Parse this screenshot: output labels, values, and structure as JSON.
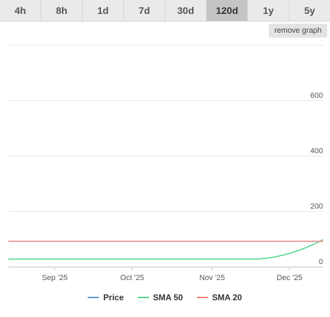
{
  "ranges": [
    "4h",
    "8h",
    "1d",
    "7d",
    "30d",
    "120d",
    "1y",
    "5y"
  ],
  "active_range": "120d",
  "remove_label": "remove graph",
  "colors": {
    "price": "#5b9bd5",
    "sma50": "#4ed38b",
    "sma20": "#f08080",
    "grid": "#e6e6e6"
  },
  "legend": [
    {
      "label": "Price",
      "color": "#5b9bd5"
    },
    {
      "label": "SMA 50",
      "color": "#4ed38b"
    },
    {
      "label": "SMA 20",
      "color": "#f08080"
    }
  ],
  "chart_data": {
    "type": "line",
    "title": "",
    "xlabel": "",
    "ylabel": "",
    "ylim": [
      0,
      800
    ],
    "yticks": [
      0,
      200,
      400,
      600
    ],
    "xticks": [
      {
        "label": "Sep '25",
        "date": "2025-09-01"
      },
      {
        "label": "Oct '25",
        "date": "2025-10-01"
      },
      {
        "label": "Nov '25",
        "date": "2025-11-01"
      },
      {
        "label": "Dec '25",
        "date": "2025-12-01"
      }
    ],
    "x_start": "2025-08-14",
    "x_end": "2025-12-14",
    "grid": true,
    "legend_position": "bottom",
    "series": [
      {
        "name": "SMA 50",
        "color": "#4ed38b",
        "points": [
          [
            "2025-08-14",
            28
          ],
          [
            "2025-09-15",
            28
          ],
          [
            "2025-10-15",
            28
          ],
          [
            "2025-11-15",
            28
          ],
          [
            "2025-11-19",
            28
          ],
          [
            "2025-11-25",
            35
          ],
          [
            "2025-12-01",
            48
          ],
          [
            "2025-12-07",
            68
          ],
          [
            "2025-12-11",
            84
          ],
          [
            "2025-12-14",
            98
          ]
        ]
      },
      {
        "name": "SMA 20",
        "color": "#f08080",
        "points": [
          [
            "2025-08-14",
            92
          ],
          [
            "2025-12-14",
            92
          ]
        ]
      }
    ]
  }
}
